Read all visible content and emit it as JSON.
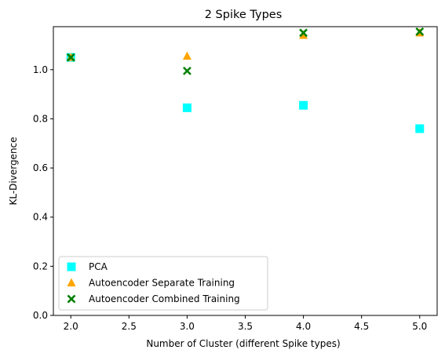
{
  "chart_data": {
    "type": "scatter",
    "title": "2 Spike Types",
    "xlabel": "Number of Cluster (different Spike types)",
    "ylabel": "KL-Divergence",
    "xlim": [
      1.85,
      5.15
    ],
    "ylim": [
      0.0,
      1.175
    ],
    "xticks": [
      2.0,
      2.5,
      3.0,
      3.5,
      4.0,
      4.5,
      5.0
    ],
    "xtick_labels": [
      "2.0",
      "2.5",
      "3.0",
      "3.5",
      "4.0",
      "4.5",
      "5.0"
    ],
    "yticks": [
      0.0,
      0.2,
      0.4,
      0.6,
      0.8,
      1.0
    ],
    "ytick_labels": [
      "0.0",
      "0.2",
      "0.4",
      "0.6",
      "0.8",
      "1.0"
    ],
    "grid": false,
    "legend_position": "lower-left",
    "series": [
      {
        "name": "PCA",
        "marker": "square",
        "color": "#00ffff",
        "x": [
          2,
          3,
          4,
          5
        ],
        "y": [
          1.05,
          0.845,
          0.855,
          0.76
        ]
      },
      {
        "name": "Autoencoder Separate Training",
        "marker": "triangle",
        "color": "#ffa500",
        "x": [
          2,
          3,
          4,
          5
        ],
        "y": [
          1.05,
          1.055,
          1.14,
          1.15
        ]
      },
      {
        "name": "Autoencoder Combined Training",
        "marker": "x",
        "color": "#008000",
        "x": [
          2,
          3,
          4,
          5
        ],
        "y": [
          1.05,
          0.995,
          1.15,
          1.155
        ]
      }
    ]
  }
}
